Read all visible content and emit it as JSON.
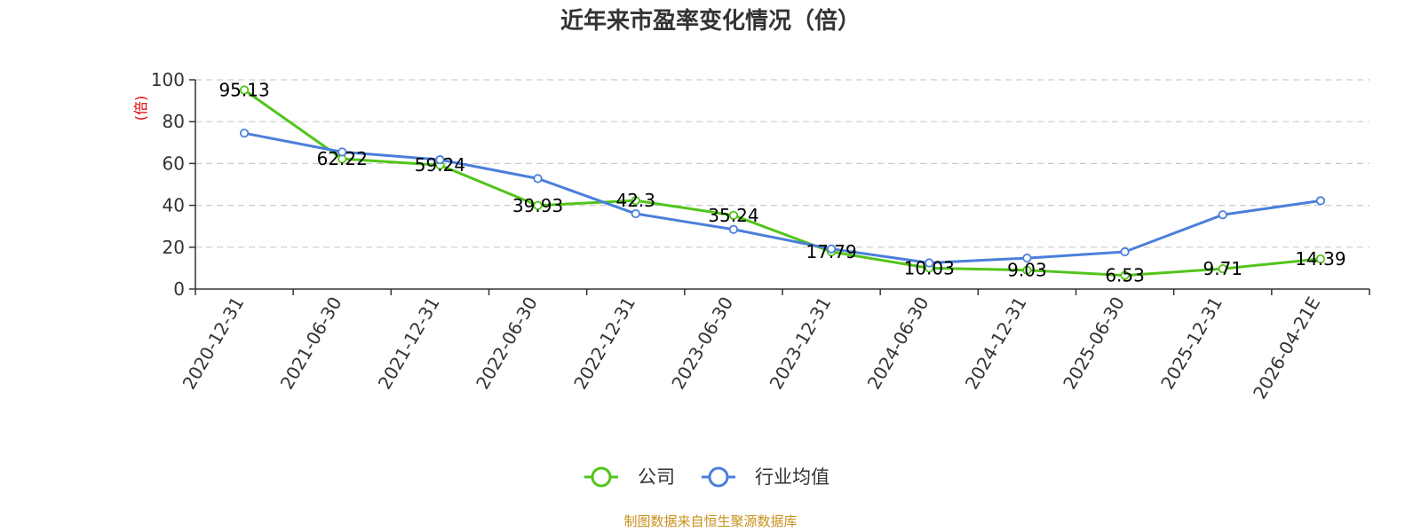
{
  "chart_data": {
    "type": "line",
    "title": "近年来市盈率变化情况（倍）",
    "ylabel": "(倍)",
    "xlabel": "",
    "ylim": [
      0,
      100
    ],
    "yticks": [
      0,
      20,
      40,
      60,
      80,
      100
    ],
    "grid": true,
    "legend_position": "bottom",
    "categories": [
      "2020-12-31",
      "2021-06-30",
      "2021-12-31",
      "2022-06-30",
      "2022-12-31",
      "2023-06-30",
      "2023-12-31",
      "2024-06-30",
      "2024-12-31",
      "2025-06-30",
      "2025-12-31",
      "2026-04-21E"
    ],
    "series": [
      {
        "name": "公司",
        "color": "#52c41a",
        "values": [
          95.13,
          62.22,
          59.24,
          39.93,
          42.3,
          35.24,
          17.79,
          10.03,
          9.03,
          6.53,
          9.71,
          14.39
        ],
        "labels": [
          "95.13",
          "62.22",
          "59.24",
          "39.93",
          "42.3",
          "35.24",
          "17.79",
          "10.03",
          "9.03",
          "6.53",
          "9.71",
          "14.39"
        ]
      },
      {
        "name": "行业均值",
        "color": "#4a7fdb",
        "values": [
          74.5,
          65.5,
          61.8,
          52.8,
          36.0,
          28.5,
          19.2,
          12.5,
          14.8,
          17.8,
          35.5,
          42.2
        ]
      }
    ],
    "source": "制图数据来自恒生聚源数据库"
  }
}
